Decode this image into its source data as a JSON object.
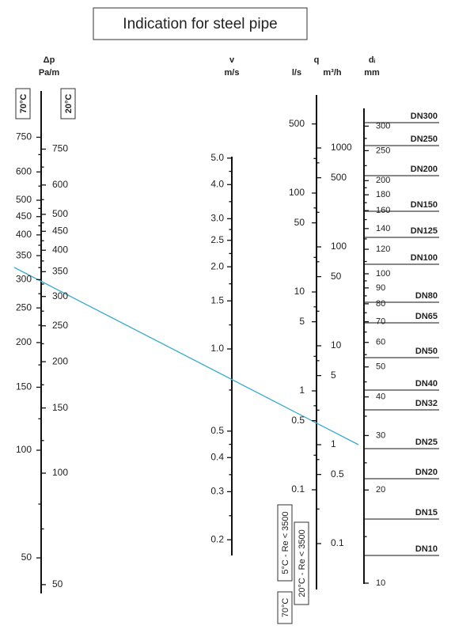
{
  "title": "Indication for steel pipe",
  "headers": {
    "dp": "Δp",
    "dp_unit": "Pa/m",
    "v": "v",
    "v_unit": "m/s",
    "q": "q",
    "q_ls": "l/s",
    "q_m3h": "m³/h",
    "d": "dᵢ",
    "d_unit": "mm"
  },
  "temp_boxes": [
    "70°C",
    "20°C"
  ],
  "bottom_boxes": [
    "5°C - Re < 3500",
    "20°C - Re < 3500",
    "70°C"
  ],
  "scales": {
    "dp70": [
      "750",
      "600",
      "500",
      "450",
      "400",
      "350",
      "300",
      "250",
      "200",
      "150",
      "100",
      "50"
    ],
    "dp20": [
      "750",
      "600",
      "500",
      "450",
      "400",
      "350",
      "300",
      "250",
      "200",
      "150",
      "100",
      "50"
    ],
    "v": [
      "5.0",
      "4.0",
      "3.0",
      "2.5",
      "2.0",
      "1.5",
      "1.0",
      "0.5",
      "0.4",
      "0.3",
      "0.2"
    ],
    "ls": [
      "500",
      "100",
      "50",
      "10",
      "5",
      "1",
      "0.5",
      "0.1"
    ],
    "m3h": [
      "1000",
      "500",
      "100",
      "50",
      "10",
      "5",
      "1",
      "0.5",
      "0.1"
    ],
    "di": [
      "300",
      "250",
      "200",
      "180",
      "160",
      "140",
      "120",
      "100",
      "90",
      "80",
      "70",
      "60",
      "50",
      "40",
      "30",
      "20",
      "10"
    ]
  },
  "dn": [
    "DN300",
    "DN250",
    "DN200",
    "DN150",
    "DN125",
    "DN100",
    "DN80",
    "DN65",
    "DN50",
    "DN40",
    "DN32",
    "DN25",
    "DN20",
    "DN15",
    "DN10"
  ]
}
